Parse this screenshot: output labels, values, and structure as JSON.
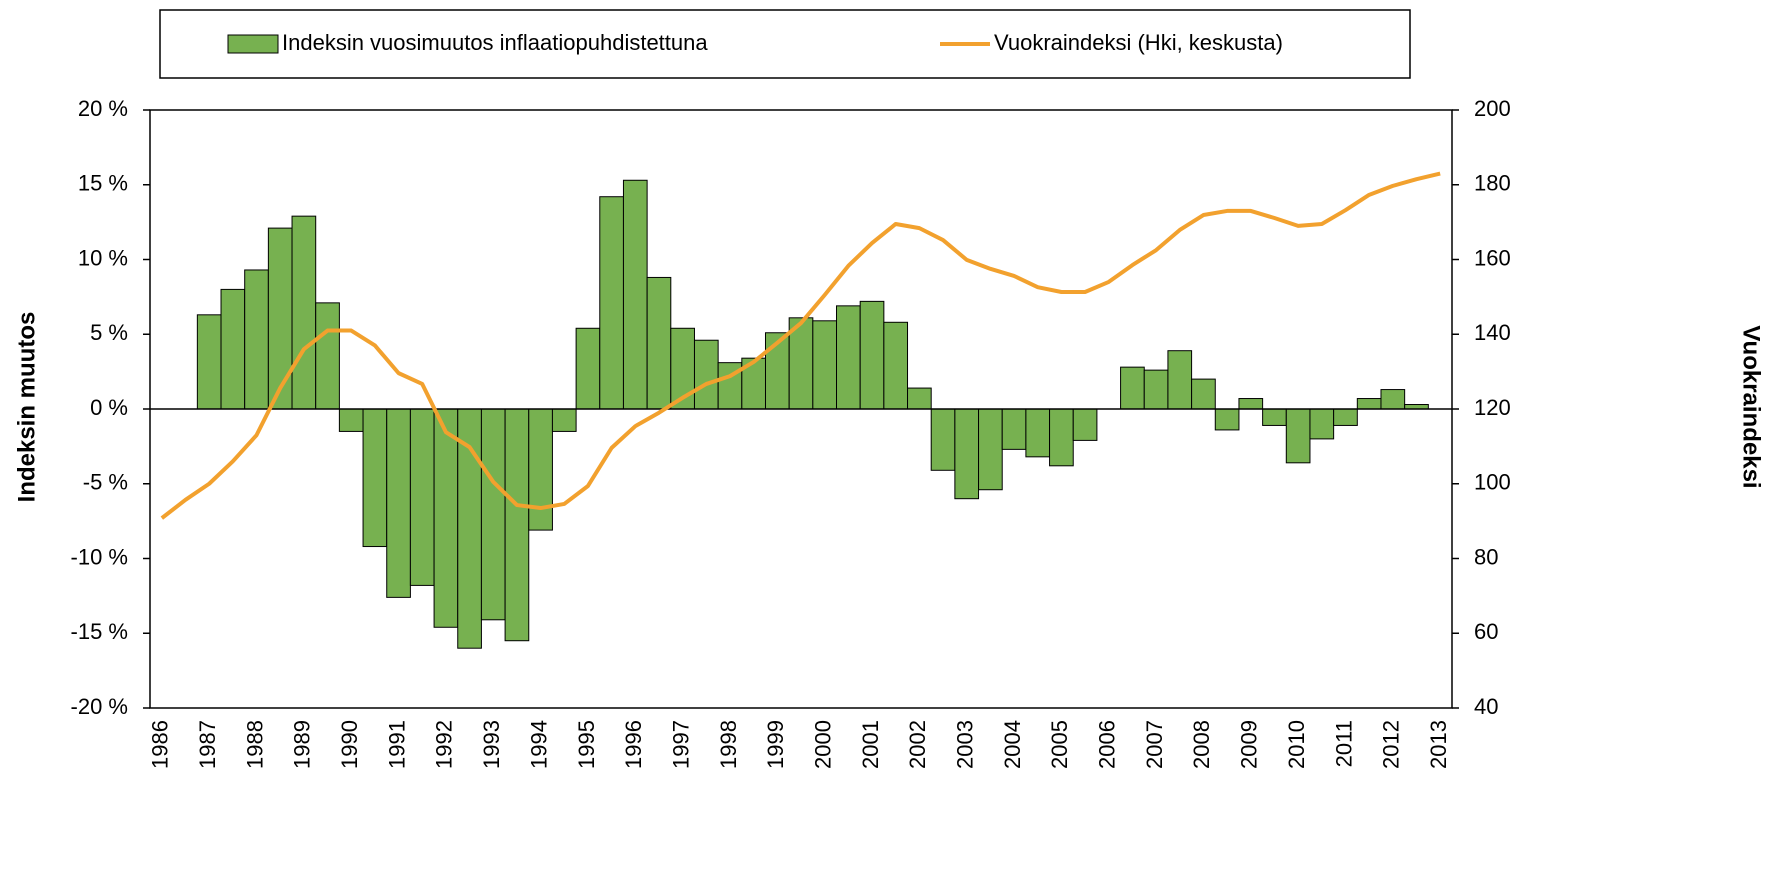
{
  "chart_data": {
    "type": "bar-line",
    "categories": [
      "1986",
      null,
      "1987",
      null,
      "1988",
      null,
      "1989",
      null,
      "1990",
      null,
      "1991",
      null,
      "1992",
      null,
      "1993",
      null,
      "1994",
      null,
      "1995",
      null,
      "1996",
      null,
      "1997",
      null,
      "1998",
      null,
      "1999",
      null,
      "2000",
      null,
      "2001",
      null,
      "2002",
      null,
      "2003",
      null,
      "2004",
      null,
      "2005",
      null,
      "2006",
      null,
      "2007",
      null,
      "2008",
      null,
      "2009",
      null,
      "2010",
      null,
      "2011",
      null,
      "2012",
      null,
      "2013"
    ],
    "series": [
      {
        "name": "Indeksin vuosimuutos inflaatiopuhdistettuna",
        "type": "bar",
        "color": "#77b150",
        "values": [
          null,
          null,
          6.3,
          8.0,
          9.3,
          12.1,
          12.9,
          7.1,
          -1.5,
          -9.2,
          -12.6,
          -11.8,
          -14.6,
          -16.0,
          -14.1,
          -15.5,
          -8.1,
          -1.5,
          5.4,
          14.2,
          15.3,
          8.8,
          5.4,
          4.6,
          3.1,
          3.4,
          5.1,
          6.1,
          5.9,
          6.9,
          7.2,
          5.8,
          1.4,
          -4.1,
          -6.0,
          -5.4,
          -2.7,
          -3.2,
          -3.8,
          -2.1,
          null,
          2.8,
          2.6,
          3.9,
          2.0,
          -1.4,
          0.7,
          -1.1,
          -3.6,
          -2.0,
          -1.1,
          0.7,
          1.3,
          0.3,
          null
        ]
      },
      {
        "name": "Vuokraindeksi (Hki, keskusta)",
        "type": "line",
        "axis": "y2",
        "color": "#f2a12e",
        "values": [
          90.8,
          95.7,
          100,
          106,
          113,
          125.6,
          136,
          141,
          141,
          137,
          129.6,
          126.7,
          113.8,
          109.8,
          100.5,
          94.3,
          93.5,
          94.6,
          99.4,
          109.6,
          115.4,
          119,
          123,
          126.7,
          128.8,
          132.6,
          137.7,
          143,
          150.5,
          158.3,
          164.4,
          169.5,
          168.4,
          165.2,
          159.9,
          157.5,
          155.6,
          152.6,
          151.3,
          151.3,
          154,
          158.5,
          162.5,
          167.9,
          171.9,
          173,
          173,
          171.1,
          169,
          169.5,
          173.2,
          177.3,
          179.7,
          181.5,
          183
        ]
      }
    ],
    "ylabel": "Indeksin muutos",
    "y2label": "Vuokraindeksi",
    "ylim": [
      -20,
      20
    ],
    "yticks": [
      {
        "value": -20,
        "label": "-20 %"
      },
      {
        "value": -15,
        "label": "-15 %"
      },
      {
        "value": -10,
        "label": "-10 %"
      },
      {
        "value": -5,
        "label": "-5 %"
      },
      {
        "value": 0,
        "label": "0 %"
      },
      {
        "value": 5,
        "label": "5 %"
      },
      {
        "value": 10,
        "label": "10 %"
      },
      {
        "value": 15,
        "label": "15 %"
      },
      {
        "value": 20,
        "label": "20 %"
      }
    ],
    "y2lim": [
      40,
      200
    ],
    "y2ticks": [
      40,
      60,
      80,
      100,
      120,
      140,
      160,
      180,
      200
    ],
    "legend": "top",
    "grid": false
  }
}
